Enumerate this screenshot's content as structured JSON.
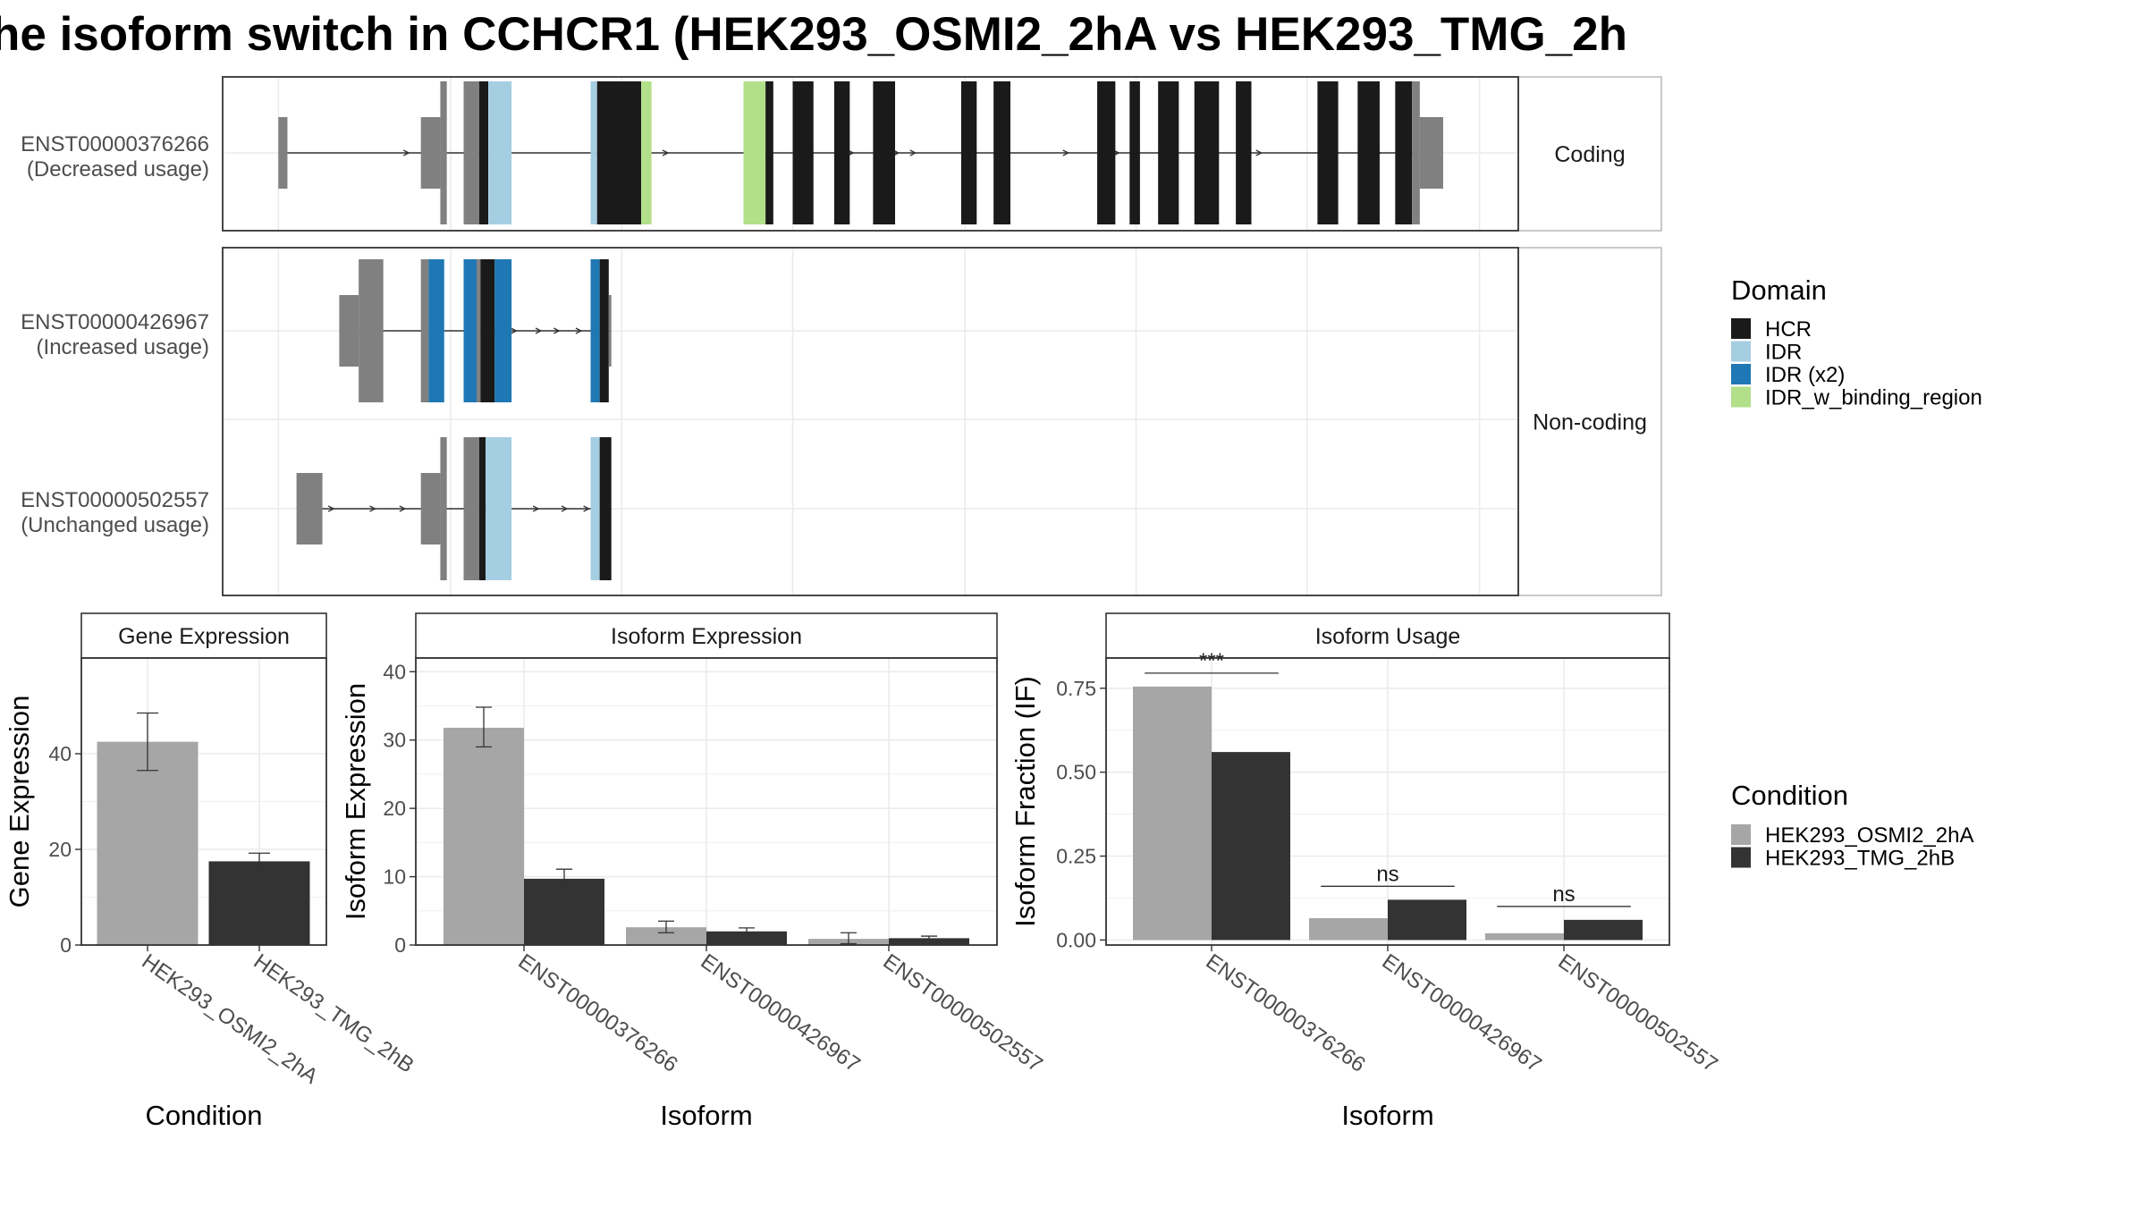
{
  "title": "he isoform switch in CCHCR1 (HEK293_OSMI2_2hA vs HEK293_TMG_2h",
  "colors": {
    "HCR": "#1a1a1a",
    "IDR": "#a6cee3",
    "IDR (x2)": "#1f78b4",
    "IDR_w_binding_region": "#b2df8a",
    "noncoding": "#808080",
    "cond1": "#a6a6a6",
    "cond2": "#333333",
    "grid": "#ebebeb"
  },
  "legends": {
    "domain": {
      "title": "Domain",
      "items": [
        "HCR",
        "IDR",
        "IDR (x2)",
        "IDR_w_binding_region"
      ]
    },
    "condition": {
      "title": "Condition",
      "items": [
        "HEK293_OSMI2_2hA",
        "HEK293_TMG_2hB"
      ]
    }
  },
  "transcripts": {
    "strips": [
      "Coding",
      "Non-coding"
    ],
    "rows": [
      {
        "name": "ENST00000376266",
        "usage": "(Decreased usage)",
        "panel": 0,
        "arrows": [
          14.3,
          16.6,
          19.5,
          31.4,
          34.3,
          48.6,
          52.1,
          53.4,
          65.2,
          69.1,
          80.1,
          85.3,
          89.3
        ],
        "blocks": [
          {
            "s": 4.3,
            "e": 5.0,
            "h": "utr",
            "c": "noncoding"
          },
          {
            "s": 15.3,
            "e": 16.8,
            "h": "utr",
            "c": "noncoding"
          },
          {
            "s": 16.8,
            "e": 17.3,
            "h": "full",
            "c": "noncoding"
          },
          {
            "s": 18.6,
            "e": 19.8,
            "h": "full",
            "c": "noncoding"
          },
          {
            "s": 19.8,
            "e": 20.5,
            "h": "full",
            "c": "HCR"
          },
          {
            "s": 20.5,
            "e": 22.3,
            "h": "full",
            "c": "IDR"
          },
          {
            "s": 28.4,
            "e": 28.9,
            "h": "full",
            "c": "IDR"
          },
          {
            "s": 28.9,
            "e": 32.3,
            "h": "full",
            "c": "HCR"
          },
          {
            "s": 32.3,
            "e": 33.1,
            "h": "full",
            "c": "IDR_w_binding_region"
          },
          {
            "s": 40.2,
            "e": 41.9,
            "h": "full",
            "c": "IDR_w_binding_region"
          },
          {
            "s": 41.9,
            "e": 42.5,
            "h": "full",
            "c": "HCR"
          },
          {
            "s": 44.0,
            "e": 45.6,
            "h": "full",
            "c": "HCR"
          },
          {
            "s": 47.2,
            "e": 48.4,
            "h": "full",
            "c": "HCR"
          },
          {
            "s": 50.2,
            "e": 51.9,
            "h": "full",
            "c": "HCR"
          },
          {
            "s": 57.0,
            "e": 58.2,
            "h": "full",
            "c": "HCR"
          },
          {
            "s": 59.5,
            "e": 60.8,
            "h": "full",
            "c": "HCR"
          },
          {
            "s": 67.5,
            "e": 68.9,
            "h": "full",
            "c": "HCR"
          },
          {
            "s": 70.0,
            "e": 70.8,
            "h": "full",
            "c": "HCR"
          },
          {
            "s": 72.2,
            "e": 73.8,
            "h": "full",
            "c": "HCR"
          },
          {
            "s": 75.0,
            "e": 76.9,
            "h": "full",
            "c": "HCR"
          },
          {
            "s": 78.2,
            "e": 79.4,
            "h": "full",
            "c": "HCR"
          },
          {
            "s": 84.5,
            "e": 86.1,
            "h": "full",
            "c": "HCR"
          },
          {
            "s": 87.6,
            "e": 89.3,
            "h": "full",
            "c": "HCR"
          },
          {
            "s": 90.5,
            "e": 91.8,
            "h": "full",
            "c": "HCR"
          },
          {
            "s": 91.8,
            "e": 92.4,
            "h": "full",
            "c": "noncoding"
          },
          {
            "s": 92.4,
            "e": 94.2,
            "h": "utr",
            "c": "noncoding"
          }
        ]
      },
      {
        "name": "ENST00000426967",
        "usage": "(Increased usage)",
        "panel": 1,
        "arrows": [
          22.6,
          24.5,
          25.9,
          27.6
        ],
        "blocks": [
          {
            "s": 9.0,
            "e": 10.5,
            "h": "utr",
            "c": "noncoding"
          },
          {
            "s": 10.5,
            "e": 12.4,
            "h": "full",
            "c": "noncoding"
          },
          {
            "s": 15.3,
            "e": 15.9,
            "h": "full",
            "c": "noncoding"
          },
          {
            "s": 15.9,
            "e": 17.1,
            "h": "full",
            "c": "IDR (x2)"
          },
          {
            "s": 18.6,
            "e": 19.6,
            "h": "full",
            "c": "IDR (x2)"
          },
          {
            "s": 19.6,
            "e": 19.9,
            "h": "full",
            "c": "noncoding"
          },
          {
            "s": 19.9,
            "e": 21.0,
            "h": "full",
            "c": "HCR"
          },
          {
            "s": 21.0,
            "e": 22.3,
            "h": "full",
            "c": "IDR (x2)"
          },
          {
            "s": 28.4,
            "e": 29.1,
            "h": "full",
            "c": "IDR (x2)"
          },
          {
            "s": 29.1,
            "e": 29.8,
            "h": "full",
            "c": "HCR"
          },
          {
            "s": 29.8,
            "e": 30.0,
            "h": "utr",
            "c": "noncoding"
          }
        ]
      },
      {
        "name": "ENST00000502557",
        "usage": "(Unchanged usage)",
        "panel": 1,
        "arrows": [
          8.5,
          11.7,
          14.0,
          24.3,
          26.5,
          28.2
        ],
        "blocks": [
          {
            "s": 5.7,
            "e": 7.7,
            "h": "utr",
            "c": "noncoding"
          },
          {
            "s": 15.3,
            "e": 16.8,
            "h": "utr",
            "c": "noncoding"
          },
          {
            "s": 16.8,
            "e": 17.3,
            "h": "full",
            "c": "noncoding"
          },
          {
            "s": 18.6,
            "e": 19.8,
            "h": "full",
            "c": "noncoding"
          },
          {
            "s": 19.8,
            "e": 20.3,
            "h": "full",
            "c": "HCR"
          },
          {
            "s": 20.3,
            "e": 22.3,
            "h": "full",
            "c": "IDR"
          },
          {
            "s": 28.4,
            "e": 29.1,
            "h": "full",
            "c": "IDR"
          },
          {
            "s": 29.1,
            "e": 30.0,
            "h": "full",
            "c": "HCR"
          }
        ]
      }
    ]
  },
  "chart_data": [
    {
      "type": "bar",
      "title": "Gene Expression",
      "xlabel": "Condition",
      "ylabel": "Gene Expression",
      "ylim": [
        0,
        60
      ],
      "yticks": [
        0,
        20,
        40
      ],
      "categories": [
        "HEK293_OSMI2_2hA",
        "HEK293_TMG_2hB"
      ],
      "values": [
        42.5,
        17.5
      ],
      "err_low": [
        36.5,
        15.8
      ],
      "err_high": [
        48.5,
        19.2
      ]
    },
    {
      "type": "bar",
      "title": "Isoform Expression",
      "xlabel": "Isoform",
      "ylabel": "Isoform Expression",
      "ylim": [
        0,
        42
      ],
      "yticks": [
        0,
        10,
        20,
        30,
        40
      ],
      "categories": [
        "ENST00000376266",
        "ENST00000426967",
        "ENST00000502557"
      ],
      "series": [
        {
          "name": "HEK293_OSMI2_2hA",
          "values": [
            31.8,
            2.6,
            0.9
          ],
          "err_low": [
            29.0,
            1.8,
            0.2
          ],
          "err_high": [
            34.8,
            3.5,
            1.8
          ]
        },
        {
          "name": "HEK293_TMG_2hB",
          "values": [
            9.7,
            2.0,
            1.0
          ],
          "err_low": [
            8.3,
            1.6,
            0.7
          ],
          "err_high": [
            11.1,
            2.5,
            1.3
          ]
        }
      ]
    },
    {
      "type": "bar",
      "title": "Isoform Usage",
      "xlabel": "Isoform",
      "ylabel": "Isoform Fraction (IF)",
      "ylim": [
        -0.015,
        0.84
      ],
      "yticks": [
        0.0,
        0.25,
        0.5,
        0.75
      ],
      "ytick_labels": [
        "0.00",
        "0.25",
        "0.50",
        "0.75"
      ],
      "categories": [
        "ENST00000376266",
        "ENST00000426967",
        "ENST00000502557"
      ],
      "series": [
        {
          "name": "HEK293_OSMI2_2hA",
          "values": [
            0.755,
            0.065,
            0.02
          ]
        },
        {
          "name": "HEK293_TMG_2hB",
          "values": [
            0.56,
            0.12,
            0.06
          ]
        }
      ],
      "annotations": [
        "***",
        "ns",
        "ns"
      ],
      "annotation_y": [
        0.795,
        0.16,
        0.1
      ]
    }
  ]
}
